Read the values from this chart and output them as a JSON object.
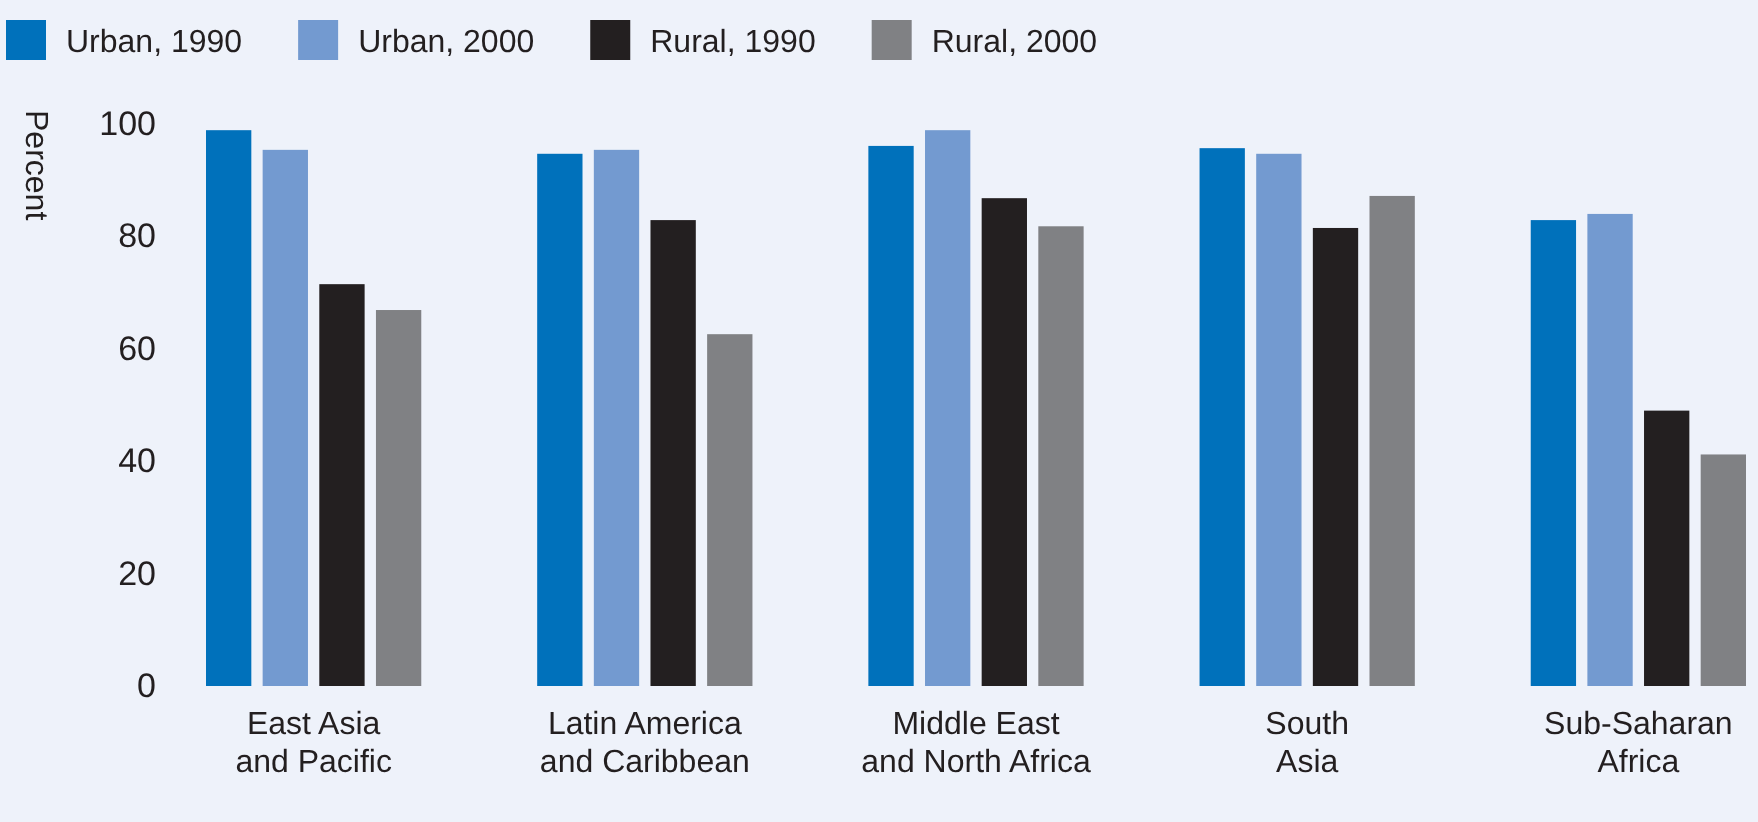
{
  "chart_data": {
    "type": "bar",
    "ylabel": "Percent",
    "categories": [
      "East Asia and Pacific",
      "Latin America and Caribbean",
      "Middle East and North Africa",
      "South Asia",
      "Sub-Saharan Africa"
    ],
    "series": [
      {
        "name": "Urban, 1990",
        "color": "#0071bb",
        "values": [
          98.9,
          94.7,
          96.1,
          95.7,
          82.9
        ]
      },
      {
        "name": "Urban, 2000",
        "color": "#739ad0",
        "values": [
          95.4,
          95.4,
          98.9,
          94.7,
          84.0
        ]
      },
      {
        "name": "Rural, 1990",
        "color": "#231f20",
        "values": [
          71.5,
          82.9,
          86.8,
          81.5,
          49.0
        ]
      },
      {
        "name": "Rural, 2000",
        "color": "#808184",
        "values": [
          66.9,
          62.6,
          81.8,
          87.2,
          41.2
        ]
      }
    ],
    "ylim": [
      0,
      100
    ],
    "yticks": [
      0,
      20,
      40,
      60,
      80,
      100
    ],
    "grid": false,
    "legend": "top left"
  }
}
